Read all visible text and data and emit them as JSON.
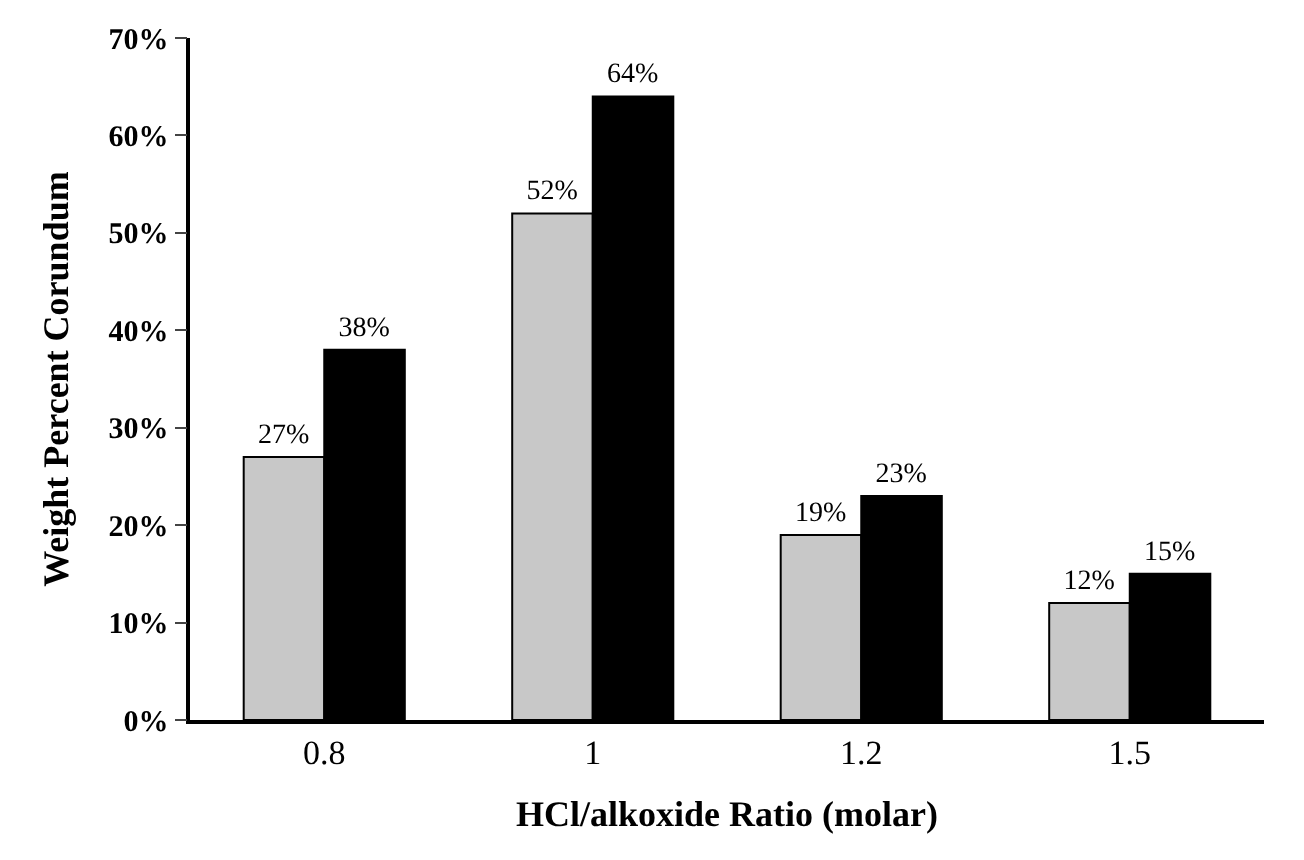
{
  "chart_data": {
    "type": "bar",
    "xlabel": "HCl/alkoxide Ratio (molar)",
    "ylabel": "Weight Percent Corundum",
    "categories": [
      "0.8",
      "1",
      "1.2",
      "1.5"
    ],
    "series": [
      {
        "color": "#c8c8c8",
        "values": [
          27,
          52,
          19,
          12
        ],
        "value_labels": [
          "27%",
          "52%",
          "19%",
          "12%"
        ]
      },
      {
        "color": "#000000",
        "values": [
          38,
          64,
          23,
          15
        ],
        "value_labels": [
          "38%",
          "64%",
          "23%",
          "15%"
        ]
      }
    ],
    "ylim": [
      0,
      70
    ],
    "yticks": [
      {
        "value": 0,
        "label": "0%"
      },
      {
        "value": 10,
        "label": "10%"
      },
      {
        "value": 20,
        "label": "20%"
      },
      {
        "value": 30,
        "label": "30%"
      },
      {
        "value": 40,
        "label": "40%"
      },
      {
        "value": 50,
        "label": "50%"
      },
      {
        "value": 60,
        "label": "60%"
      },
      {
        "value": 70,
        "label": "70%"
      }
    ]
  }
}
